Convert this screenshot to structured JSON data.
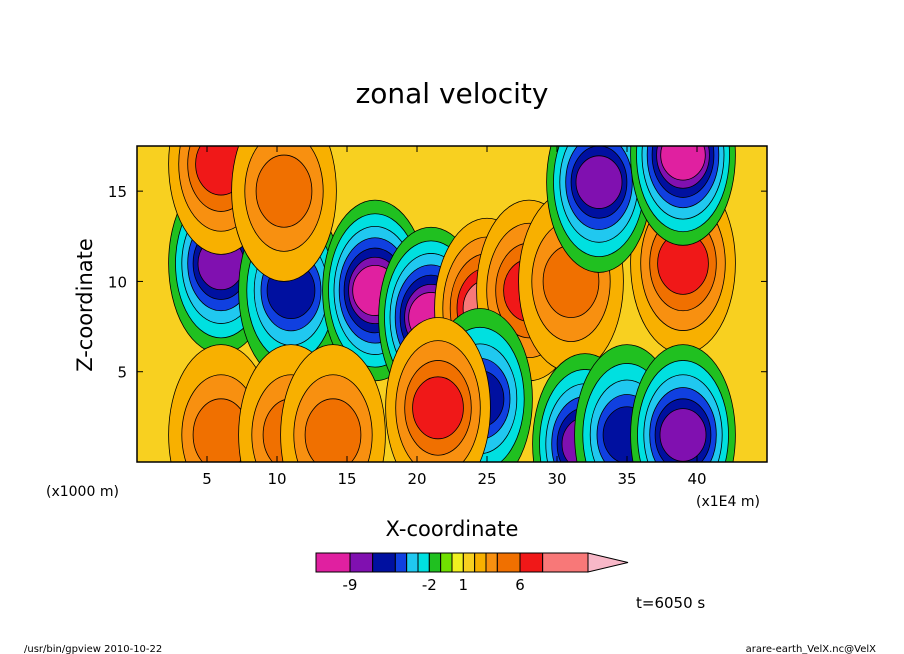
{
  "chart_data": {
    "type": "heatmap",
    "title": "zonal velocity",
    "xlabel": "X-coordinate",
    "ylabel": "Z-coordinate",
    "x_unit": "(x1E4 m)",
    "y_unit": "(x1000 m)",
    "xlim": [
      0,
      45
    ],
    "ylim": [
      0,
      17.5
    ],
    "x_ticks": [
      5,
      10,
      15,
      20,
      25,
      30,
      35,
      40
    ],
    "y_ticks": [
      5,
      10,
      15
    ],
    "colorbar": {
      "levels": [
        -12,
        -9,
        -7,
        -5,
        -4,
        -3,
        -2,
        -1,
        0,
        1,
        2,
        3,
        4,
        6,
        8,
        12
      ],
      "colors": [
        "#e020a0",
        "#8010b0",
        "#0010a0",
        "#1040e0",
        "#20c8f0",
        "#00e0e0",
        "#20c020",
        "#70e000",
        "#f0f020",
        "#f8d020",
        "#f8b000",
        "#f89010",
        "#f07000",
        "#f01818",
        "#f87878",
        "#f8b8c8"
      ],
      "tick_labels": [
        "-9",
        "-2",
        "1",
        "6"
      ]
    },
    "grid": false,
    "features": [
      {
        "kind": "min",
        "x": 6,
        "z": 11,
        "value": -7
      },
      {
        "kind": "min",
        "x": 11,
        "z": 9.5,
        "value": -5
      },
      {
        "kind": "min",
        "x": 17,
        "z": 9.5,
        "value": -9
      },
      {
        "kind": "min",
        "x": 21,
        "z": 8,
        "value": -9
      },
      {
        "kind": "max",
        "x": 25,
        "z": 8.5,
        "value": 8
      },
      {
        "kind": "max",
        "x": 28,
        "z": 9.5,
        "value": 6
      },
      {
        "kind": "max",
        "x": 31,
        "z": 10,
        "value": 4
      },
      {
        "kind": "max",
        "x": 39,
        "z": 11,
        "value": 6
      },
      {
        "kind": "max",
        "x": 6,
        "z": 16.5,
        "value": 6
      },
      {
        "kind": "max",
        "x": 10.5,
        "z": 15,
        "value": 4
      },
      {
        "kind": "min",
        "x": 33,
        "z": 15.5,
        "value": -7
      },
      {
        "kind": "min",
        "x": 39,
        "z": 17,
        "value": -9
      },
      {
        "kind": "max",
        "x": 6,
        "z": 1.5,
        "value": 4
      },
      {
        "kind": "max",
        "x": 11,
        "z": 1.5,
        "value": 4
      },
      {
        "kind": "max",
        "x": 14,
        "z": 1.5,
        "value": 4
      },
      {
        "kind": "min",
        "x": 24.5,
        "z": 3.5,
        "value": -5
      },
      {
        "kind": "min",
        "x": 32,
        "z": 1,
        "value": -7
      },
      {
        "kind": "min",
        "x": 35,
        "z": 1.5,
        "value": -5
      },
      {
        "kind": "min",
        "x": 39,
        "z": 1.5,
        "value": -7
      },
      {
        "kind": "max",
        "x": 21.5,
        "z": 3,
        "value": 6
      }
    ]
  },
  "time_label": "t=6050 s",
  "footer": {
    "left": "/usr/bin/gpview  2010-10-22",
    "right": "arare-earth_VelX.nc@VelX"
  }
}
